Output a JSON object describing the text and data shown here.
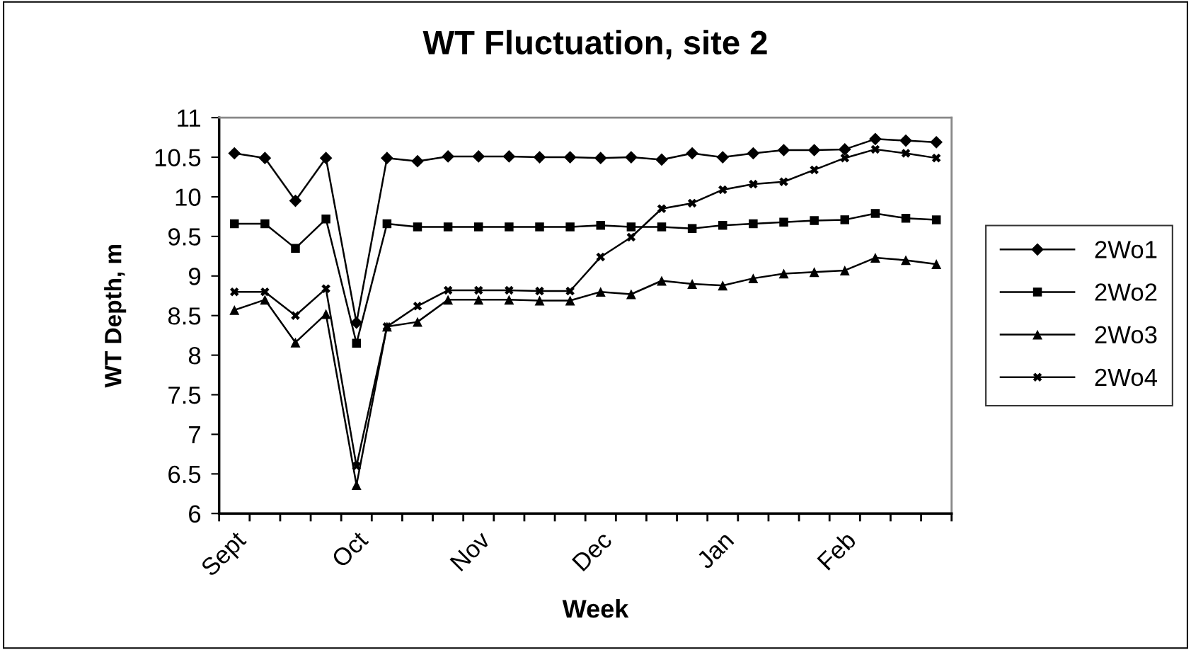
{
  "chart_data": {
    "type": "line",
    "title": "WT Fluctuation, site 2",
    "xlabel": "Week",
    "ylabel": "WT Depth, m",
    "categories": [
      "Sept",
      null,
      null,
      null,
      "Oct",
      null,
      null,
      null,
      "Nov",
      null,
      null,
      null,
      "Dec",
      null,
      null,
      null,
      "Jan",
      null,
      null,
      null,
      "Feb",
      null,
      null,
      null
    ],
    "ylim": [
      6,
      11
    ],
    "yticks": [
      6,
      6.5,
      7,
      7.5,
      8,
      8.5,
      9,
      9.5,
      10,
      10.5,
      11
    ],
    "grid": false,
    "legend": "right",
    "series": [
      {
        "name": "2Wo1",
        "color": "#000000",
        "marker": "diamond",
        "values": [
          10.55,
          10.49,
          9.95,
          10.49,
          8.41,
          10.49,
          10.45,
          10.51,
          10.51,
          10.51,
          10.5,
          10.5,
          10.49,
          10.5,
          10.47,
          10.55,
          10.5,
          10.55,
          10.59,
          10.59,
          10.6,
          10.73,
          10.71,
          10.69
        ]
      },
      {
        "name": "2Wo2",
        "color": "#000000",
        "marker": "square",
        "values": [
          9.66,
          9.66,
          9.35,
          9.72,
          8.15,
          9.66,
          9.62,
          9.62,
          9.62,
          9.62,
          9.62,
          9.62,
          9.64,
          9.62,
          9.62,
          9.6,
          9.64,
          9.66,
          9.68,
          9.7,
          9.71,
          9.79,
          9.73,
          9.71
        ]
      },
      {
        "name": "2Wo3",
        "color": "#000000",
        "marker": "triangle",
        "values": [
          8.57,
          8.7,
          8.16,
          8.52,
          6.36,
          8.36,
          8.42,
          8.7,
          8.7,
          8.7,
          8.69,
          8.69,
          8.8,
          8.77,
          8.94,
          8.9,
          8.88,
          8.97,
          9.03,
          9.05,
          9.07,
          9.23,
          9.2,
          9.15
        ]
      },
      {
        "name": "2Wo4",
        "color": "#000000",
        "marker": "cross",
        "values": [
          8.8,
          8.8,
          8.5,
          8.84,
          6.6,
          8.36,
          8.62,
          8.82,
          8.82,
          8.82,
          8.81,
          8.81,
          9.24,
          9.49,
          9.85,
          9.92,
          10.09,
          10.16,
          10.19,
          10.34,
          10.49,
          10.6,
          10.55,
          10.49
        ]
      }
    ]
  }
}
